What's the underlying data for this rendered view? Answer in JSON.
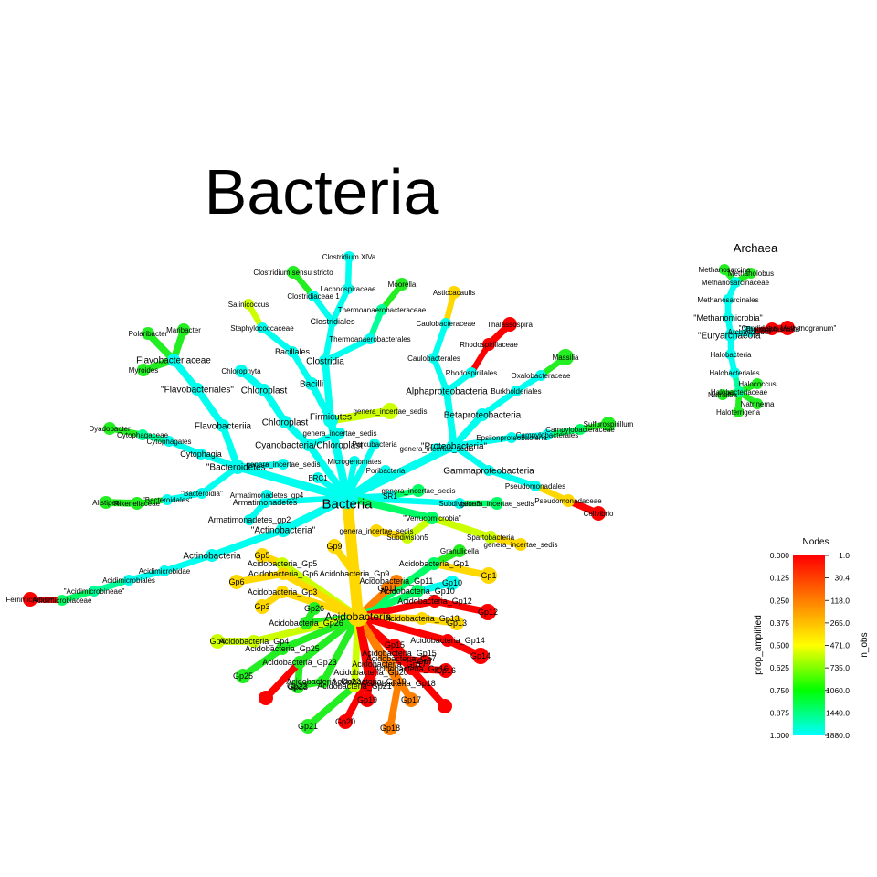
{
  "titles": {
    "main": "Bacteria",
    "archaea": "Archaea"
  },
  "legend": {
    "title": "Nodes",
    "left_axis_label": "prop_amplified",
    "right_axis_label": "n_obs",
    "left_ticks": [
      "0.000",
      "0.125",
      "0.250",
      "0.375",
      "0.500",
      "0.625",
      "0.750",
      "0.875",
      "1.000"
    ],
    "right_ticks": [
      "1.0",
      "30.4",
      "118.0",
      "265.0",
      "471.0",
      "735.0",
      "1060.0",
      "1440.0",
      "1880.0"
    ],
    "colors": [
      "#ff0000",
      "#ff7f00",
      "#ffff00",
      "#00ff00",
      "#00ffff"
    ]
  },
  "nodes": {
    "bacteria": "Bacteria",
    "firmicutes": "Firmicutes",
    "bacilli1": "Bacilli",
    "bacillales": "Bacillales",
    "staphylococcaceae": "Staphylococcaceae",
    "salinicoccus": "Salinicoccus",
    "clostridia": "Clostridia",
    "clostridiales": "Clostridiales",
    "clostridiaceae1": "Clostridiaceae 1",
    "clostridium_ss": "Clostridium sensu stricto",
    "lachnospiraceae": "Lachnospiraceae",
    "clostridium_xiva": "Clostridium XlVa",
    "thermoanaerobacterales": "Thermoanaerobacterales",
    "thermoanaerobacteraceae": "Thermoanaerobacteraceae",
    "moorella": "Moorella",
    "firm_incertae": "genera_incertae_sedis",
    "proteobacteria": "\"Proteobacteria\"",
    "alphaproteobacteria": "Alphaproteobacteria",
    "caulobacterales": "Caulobacterales",
    "caulobacteraceae": "Caulobacteraceae",
    "asticcacaulis": "Asticcacaulis",
    "rhodospirillales": "Rhodospirillales",
    "rhodospirillaceae": "Rhodospirillaceae",
    "thalassospira": "Thalassospira",
    "betaproteobacteria": "Betaproteobacteria",
    "burkholderiales": "Burkholderiales",
    "oxalobacteraceae": "Oxalobacteraceae",
    "massilia": "Massilia",
    "epsilonproteobacteria": "Epsilonproteobacteria",
    "campylobacterales": "Campylobacterales",
    "campylobacteraceae": "Campylobacteraceae",
    "sulfurospirillum": "Sulfurospirillum",
    "gammaproteobacteria": "Gammaproteobacteria",
    "pseudomonadales": "Pseudomonadales",
    "pseudomonadaceae": "Pseudomonadaceae",
    "cellvibrio": "Cellvibrio",
    "prot_incertae": "genera_incertae_sedis",
    "cyanobacteria": "Cyanobacteria/Chloroplast",
    "chloroplast1": "Chloroplast",
    "chloroplast2": "Chloroplast",
    "chlorophyta": "Chlorophyta",
    "cyan_incertae": "genera_incertae_sedis",
    "bacteroidetes": "\"Bacteroidetes\"",
    "flavobacteriia": "Flavobacteriia",
    "flavobacteriales": "\"Flavobacteriales\"",
    "flavobacteriaceae": "Flavobacteriaceae",
    "polaribacter": "Polaribacter",
    "maribacter": "Maribacter",
    "myroides": "Myroides",
    "cytophagia": "Cytophagia",
    "cytophagales": "Cytophagales",
    "cytophagaceae": "Cytophagaceae",
    "dyadobacter": "Dyadobacter",
    "bacteroidia": "\"Bacteroidia\"",
    "bacteroidales": "\"Bacteroidales\"",
    "rikenellaceae": "Rikenellaceae",
    "alistipes": "Alistipes",
    "bact_incertae": "genera_incertae_sedis",
    "armatimonadetes": "Armatimonadetes",
    "armatimonadetes_gp2": "Armatimonadetes_gp2",
    "armatimonadetes_gp4": "Armatimonadetes_gp4",
    "actinobacteria_phylum": "\"Actinobacteria\"",
    "actinobacteria_class": "Actinobacteria",
    "acidimicrobidae": "Acidimicrobidae",
    "acidimicrobiales": "Acidimicrobiales",
    "acidimicrobineae": "\"Acidimicrobineae\"",
    "acidimicrobiaceae": "Acidimicrobiaceae",
    "ferrimicrobium": "Ferrimicrobium",
    "microgenomates": "Microgenomates",
    "parcubacteria": "Parcubacteria",
    "brc1": "BRC1",
    "poribacteria": "Poribacteria",
    "sr1": "SR1",
    "sr1_incertae": "genera_incertae_sedis",
    "subdivision3": "Subdivision3",
    "sub3_incertae": "genera_incertae_sedis",
    "verrucomicrobia": "\"Verrucomicrobia\"",
    "spartobacteria": "Spartobacteria",
    "sparto_incertae": "genera_incertae_sedis",
    "subdivision5": "Subdivision5",
    "sub5_incertae": "genera_incertae_sedis",
    "acidobacteria": "Acidobacteria",
    "acido_gp1": "Acidobacteria_Gp1",
    "granulicella": "Granulicella",
    "gp1": "Gp1",
    "acido_gp5": "Acidobacteria_Gp5",
    "gp5": "Gp5",
    "acido_gp6": "Acidobacteria_Gp6",
    "gp6": "Gp6",
    "acido_gp9": "Acidobacteria_Gp9",
    "gp9": "Gp9",
    "acido_gp3": "Acidobacteria_Gp3",
    "gp3": "Gp3",
    "acido_gp11": "Acidobacteria_Gp11",
    "gp11": "Gp11",
    "acido_gp10": "Acidobacteria_Gp10",
    "gp10": "Gp10",
    "acido_gp12": "Acidobacteria_Gp12",
    "gp12": "Gp12",
    "acido_gp13": "Acidobacteria_Gp13",
    "gp13": "Gp13",
    "acido_gp26": "Acidobacteria_Gp26",
    "gp26": "Gp26",
    "acido_gp14": "Acidobacteria_Gp14",
    "gp14": "Gp14",
    "acido_gp15": "Acidobacteria_Gp15",
    "gp15": "Gp15",
    "acido_gp4": "Acidobacteria_Gp4",
    "gp4": "Gp4",
    "acido_gp25": "Acidobacteria_Gp25",
    "gp25": "Gp25",
    "acido_gp7": "Acidobacteria_Gp7",
    "gp7": "Gp7",
    "acido_gp16": "Acidobacteria_Gp16",
    "gp16": "Gp16",
    "acido_gp23": "Acidobacteria_Gp23",
    "gp23": "Gp23",
    "acido_gp22": "Acidobacteria_Gp22",
    "gp22": "Gp22",
    "acido_gp20": "Acidobacteria_Gp20",
    "gp20": "Gp20",
    "acido_gp18": "Acidobacteria_Gp18",
    "gp18": "Gp18",
    "acido_gp17": "Acidobacteria_Gp17",
    "gp17": "Gp17",
    "acido_gp21": "Acidobacteria_Gp21",
    "gp21": "Gp21",
    "acido_gp19": "Acidobacteria_Gp19",
    "gp19": "Gp19",
    "archaea": "Archaea",
    "euryarchaeota": "\"Euryarchaeota\"",
    "methanomicrobia": "\"Methanomicrobia\"",
    "methanosarcinales": "Methanosarcinales",
    "methanosarcinaceae": "Methanosarcinaceae",
    "methanosarcina": "Methanosarcina",
    "methanolobus": "Methanolobus",
    "halobacteria": "Halobacteria",
    "halobacteriales": "Halobacteriales",
    "halobacteriaceae": "Halobacteriaceae",
    "halococcus": "Halococcus",
    "natrinema": "Natrinema",
    "natrialba": "Natrialba",
    "haloterrigena": "Haloterrigena",
    "archaeoglobi": "Archaeoglobi",
    "thermoplasmata": "\"Thermoplasmata\"",
    "candidatus": "\"Candidatus Methanogranum\""
  }
}
